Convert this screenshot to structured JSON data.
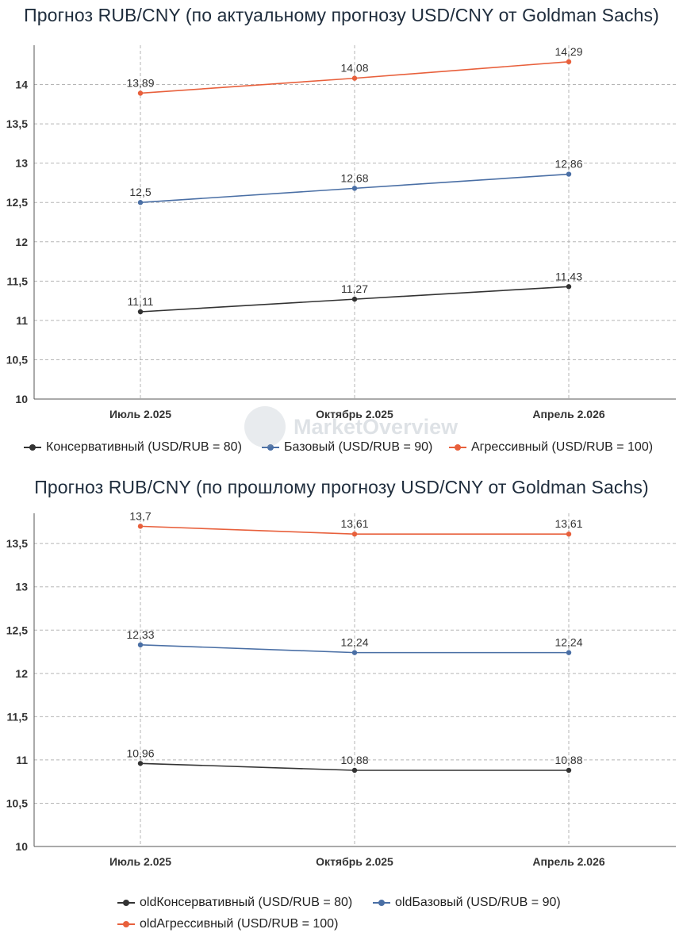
{
  "watermark": "MarketOverview",
  "chart_data": [
    {
      "type": "line",
      "title": "Прогноз RUB/CNY (по актуальному прогнозу USD/CNY от Goldman Sachs)",
      "categories": [
        "Июль 2.025",
        "Октябрь 2.025",
        "Апрель 2.026"
      ],
      "ylim": [
        10,
        14.5
      ],
      "yticks": [
        10,
        10.5,
        11,
        11.5,
        12,
        12.5,
        13,
        13.5,
        14
      ],
      "ytick_labels": [
        "10",
        "10,5",
        "11",
        "11,5",
        "12",
        "12,5",
        "13",
        "13,5",
        "14"
      ],
      "grid": true,
      "series": [
        {
          "name": "Консервативный (USD/RUB = 80)",
          "color": "#333333",
          "values": [
            11.11,
            11.27,
            11.43
          ],
          "labels": [
            "11,11",
            "11,27",
            "11,43"
          ]
        },
        {
          "name": "Базовый (USD/RUB = 90)",
          "color": "#4a6fa5",
          "values": [
            12.5,
            12.68,
            12.86
          ],
          "labels": [
            "12,5",
            "12,68",
            "12,86"
          ]
        },
        {
          "name": "Агрессивный (USD/RUB = 100)",
          "color": "#e8603c",
          "values": [
            13.89,
            14.08,
            14.29
          ],
          "labels": [
            "13,89",
            "14,08",
            "14,29"
          ]
        }
      ]
    },
    {
      "type": "line",
      "title": "Прогноз RUB/CNY (по прошлому прогнозу USD/CNY от Goldman Sachs)",
      "categories": [
        "Июль 2.025",
        "Октябрь 2.025",
        "Апрель 2.026"
      ],
      "ylim": [
        10,
        13.85
      ],
      "yticks": [
        10,
        10.5,
        11,
        11.5,
        12,
        12.5,
        13,
        13.5
      ],
      "ytick_labels": [
        "10",
        "10,5",
        "11",
        "11,5",
        "12",
        "12,5",
        "13",
        "13,5"
      ],
      "grid": true,
      "series": [
        {
          "name": "oldКонсервативный (USD/RUB = 80)",
          "color": "#333333",
          "values": [
            10.96,
            10.88,
            10.88
          ],
          "labels": [
            "10,96",
            "10,88",
            "10,88"
          ]
        },
        {
          "name": "oldБазовый (USD/RUB = 90)",
          "color": "#4a6fa5",
          "values": [
            12.33,
            12.24,
            12.24
          ],
          "labels": [
            "12,33",
            "12,24",
            "12,24"
          ]
        },
        {
          "name": "oldАгрессивный (USD/RUB = 100)",
          "color": "#e8603c",
          "values": [
            13.7,
            13.61,
            13.61
          ],
          "labels": [
            "13,7",
            "13,61",
            "13,61"
          ]
        }
      ]
    }
  ]
}
